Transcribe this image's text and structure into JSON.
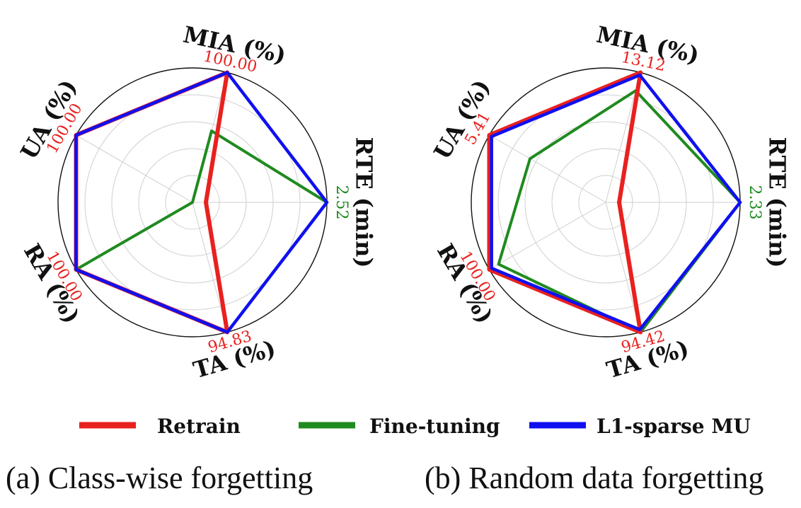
{
  "chart_data": [
    {
      "type": "radar",
      "caption": "(a) Class-wise forgetting",
      "axes": [
        {
          "label": "MIA (%)",
          "max_label": "100.00",
          "max_color": "#e8211f"
        },
        {
          "label": "RTE (min)",
          "max_label": "2.52",
          "max_color": "#1f8a1f"
        },
        {
          "label": "TA (%)",
          "max_label": "94.83",
          "max_color": "#e8211f"
        },
        {
          "label": "RA (%)",
          "max_label": "100.00",
          "max_color": "#e8211f"
        },
        {
          "label": "UA (%)",
          "max_label": "100.00",
          "max_color": "#e8211f"
        }
      ],
      "rings": 5,
      "series": [
        {
          "name": "Retrain",
          "color": "#e8211f",
          "values": [
            1.0,
            0.1,
            1.0,
            1.0,
            1.0
          ]
        },
        {
          "name": "Fine-tuning",
          "color": "#1f8a1f",
          "values": [
            0.55,
            1.0,
            1.0,
            1.0,
            0.0
          ]
        },
        {
          "name": "L1-sparse MU",
          "color": "#1010f0",
          "values": [
            1.0,
            1.0,
            1.0,
            1.0,
            1.0
          ]
        }
      ]
    },
    {
      "type": "radar",
      "caption": "(b) Random data forgetting",
      "axes": [
        {
          "label": "MIA (%)",
          "max_label": "13.12",
          "max_color": "#e8211f"
        },
        {
          "label": "RTE (min)",
          "max_label": "2.33",
          "max_color": "#1f8a1f"
        },
        {
          "label": "TA (%)",
          "max_label": "94.42",
          "max_color": "#e8211f"
        },
        {
          "label": "RA (%)",
          "max_label": "100.00",
          "max_color": "#e8211f"
        },
        {
          "label": "UA (%)",
          "max_label": "5.41",
          "max_color": "#e8211f"
        }
      ],
      "rings": 5,
      "series": [
        {
          "name": "Retrain",
          "color": "#e8211f",
          "values": [
            1.0,
            0.1,
            1.0,
            1.0,
            1.0
          ]
        },
        {
          "name": "Fine-tuning",
          "color": "#1f8a1f",
          "values": [
            0.86,
            1.0,
            1.0,
            0.92,
            0.65
          ]
        },
        {
          "name": "L1-sparse MU",
          "color": "#1010f0",
          "values": [
            0.98,
            1.0,
            0.98,
            0.98,
            0.98
          ]
        }
      ]
    }
  ],
  "legend": [
    {
      "name": "Retrain",
      "color": "#e8211f"
    },
    {
      "name": "Fine-tuning",
      "color": "#1f8a1f"
    },
    {
      "name": "L1-sparse MU",
      "color": "#1010f0"
    }
  ]
}
